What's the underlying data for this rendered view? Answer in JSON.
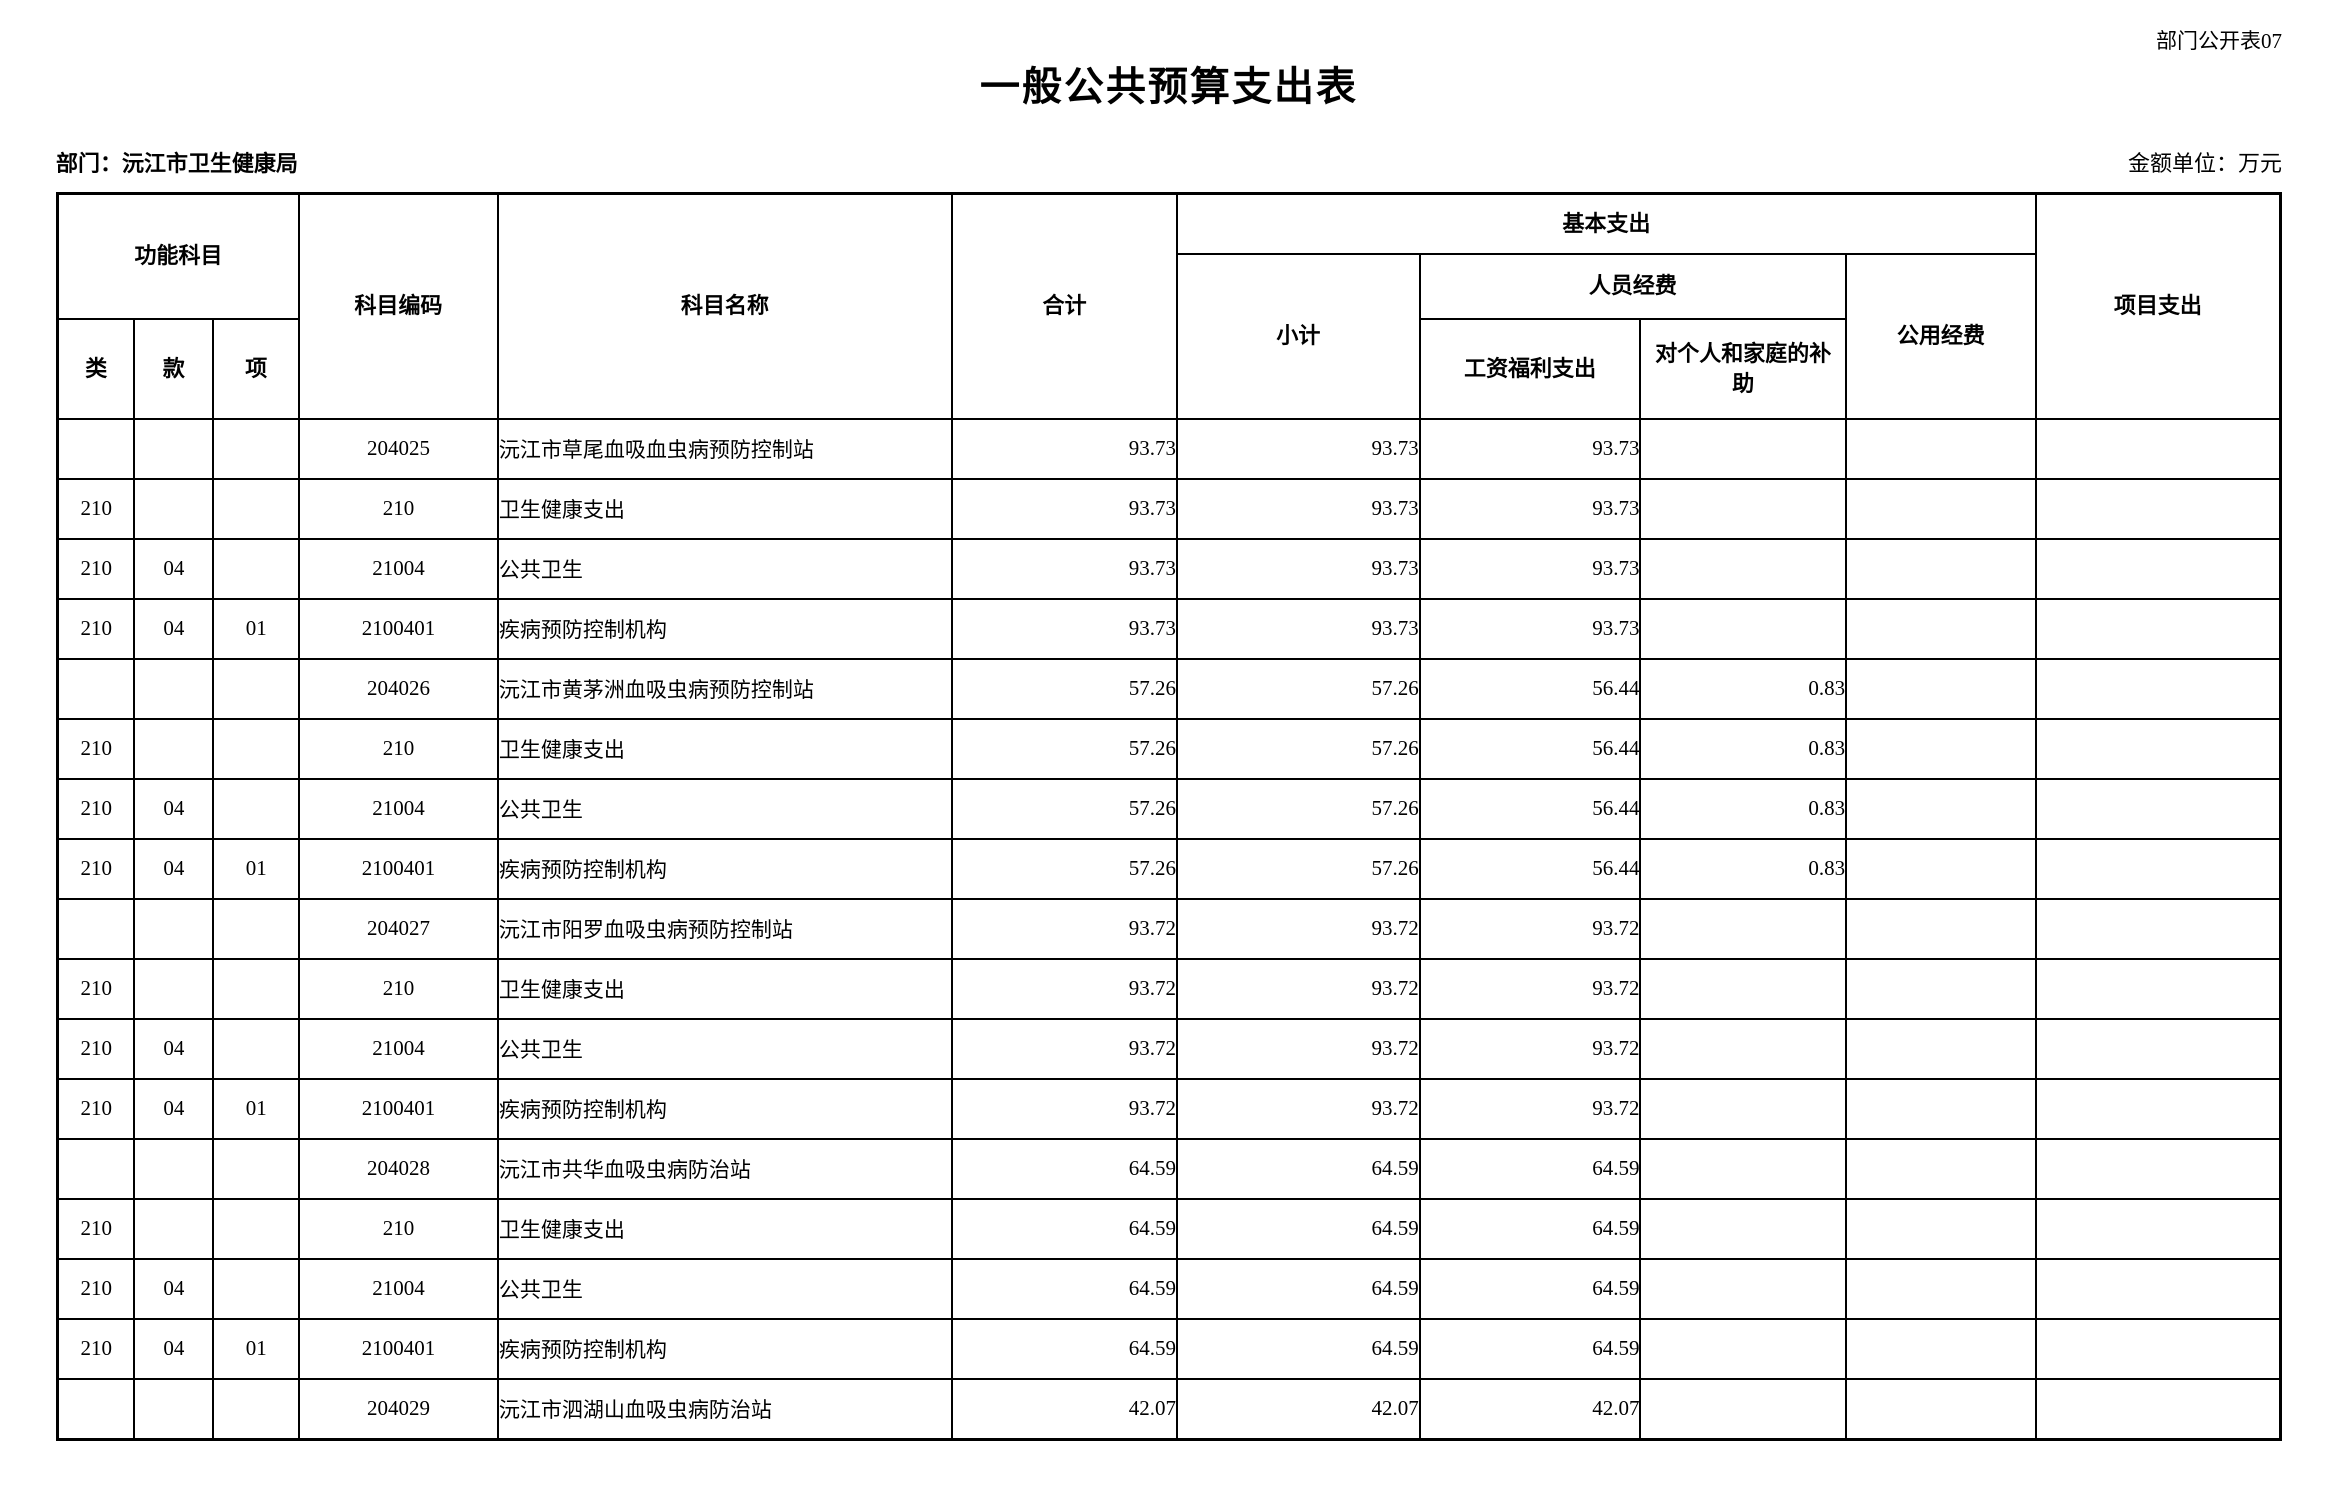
{
  "meta": {
    "sheet_label": "部门公开表07",
    "title": "一般公共预算支出表",
    "department_label": "部门：沅江市卫生健康局",
    "unit_label": "金额单位：万元"
  },
  "table": {
    "header": {
      "func_subject": "功能科目",
      "cls": "类",
      "sec": "款",
      "itm": "项",
      "subject_code": "科目编码",
      "subject_name": "科目名称",
      "total": "合计",
      "basic_expenditure": "基本支出",
      "subtotal": "小计",
      "personnel_funds": "人员经费",
      "wage_welfare": "工资福利支出",
      "individual_family_subsidy": "对个人和家庭的补助",
      "public_funds": "公用经费",
      "project_expenditure": "项目支出"
    },
    "columns_widths_pct": [
      3.46,
      3.55,
      3.86,
      8.94,
      20.44,
      10.11,
      10.92,
      9.93,
      9.25,
      8.54,
      11.0
    ],
    "rows": [
      {
        "indent": 0,
        "cells": [
          "",
          "",
          "",
          "204025",
          "沅江市草尾血吸血虫病预防控制站",
          "93.73",
          "93.73",
          "93.73",
          "",
          "",
          ""
        ]
      },
      {
        "indent": 1,
        "cells": [
          "210",
          "",
          "",
          "210",
          "卫生健康支出",
          "93.73",
          "93.73",
          "93.73",
          "",
          "",
          ""
        ]
      },
      {
        "indent": 2,
        "cells": [
          "210",
          "04",
          "",
          "21004",
          "公共卫生",
          "93.73",
          "93.73",
          "93.73",
          "",
          "",
          ""
        ]
      },
      {
        "indent": 3,
        "cells": [
          "210",
          "04",
          "01",
          "2100401",
          "疾病预防控制机构",
          "93.73",
          "93.73",
          "93.73",
          "",
          "",
          ""
        ]
      },
      {
        "indent": 0,
        "cells": [
          "",
          "",
          "",
          "204026",
          "沅江市黄茅洲血吸虫病预防控制站",
          "57.26",
          "57.26",
          "56.44",
          "0.83",
          "",
          ""
        ]
      },
      {
        "indent": 1,
        "cells": [
          "210",
          "",
          "",
          "210",
          "卫生健康支出",
          "57.26",
          "57.26",
          "56.44",
          "0.83",
          "",
          ""
        ]
      },
      {
        "indent": 2,
        "cells": [
          "210",
          "04",
          "",
          "21004",
          "公共卫生",
          "57.26",
          "57.26",
          "56.44",
          "0.83",
          "",
          ""
        ]
      },
      {
        "indent": 3,
        "cells": [
          "210",
          "04",
          "01",
          "2100401",
          "疾病预防控制机构",
          "57.26",
          "57.26",
          "56.44",
          "0.83",
          "",
          ""
        ]
      },
      {
        "indent": 0,
        "cells": [
          "",
          "",
          "",
          "204027",
          "沅江市阳罗血吸虫病预防控制站",
          "93.72",
          "93.72",
          "93.72",
          "",
          "",
          ""
        ]
      },
      {
        "indent": 1,
        "cells": [
          "210",
          "",
          "",
          "210",
          "卫生健康支出",
          "93.72",
          "93.72",
          "93.72",
          "",
          "",
          ""
        ]
      },
      {
        "indent": 2,
        "cells": [
          "210",
          "04",
          "",
          "21004",
          "公共卫生",
          "93.72",
          "93.72",
          "93.72",
          "",
          "",
          ""
        ]
      },
      {
        "indent": 3,
        "cells": [
          "210",
          "04",
          "01",
          "2100401",
          "疾病预防控制机构",
          "93.72",
          "93.72",
          "93.72",
          "",
          "",
          ""
        ]
      },
      {
        "indent": 0,
        "cells": [
          "",
          "",
          "",
          "204028",
          "沅江市共华血吸虫病防治站",
          "64.59",
          "64.59",
          "64.59",
          "",
          "",
          ""
        ]
      },
      {
        "indent": 1,
        "cells": [
          "210",
          "",
          "",
          "210",
          "卫生健康支出",
          "64.59",
          "64.59",
          "64.59",
          "",
          "",
          ""
        ]
      },
      {
        "indent": 2,
        "cells": [
          "210",
          "04",
          "",
          "21004",
          "公共卫生",
          "64.59",
          "64.59",
          "64.59",
          "",
          "",
          ""
        ]
      },
      {
        "indent": 3,
        "cells": [
          "210",
          "04",
          "01",
          "2100401",
          "疾病预防控制机构",
          "64.59",
          "64.59",
          "64.59",
          "",
          "",
          ""
        ]
      },
      {
        "indent": 0,
        "cells": [
          "",
          "",
          "",
          "204029",
          "沅江市泗湖山血吸虫病防治站",
          "42.07",
          "42.07",
          "42.07",
          "",
          "",
          ""
        ]
      }
    ]
  }
}
